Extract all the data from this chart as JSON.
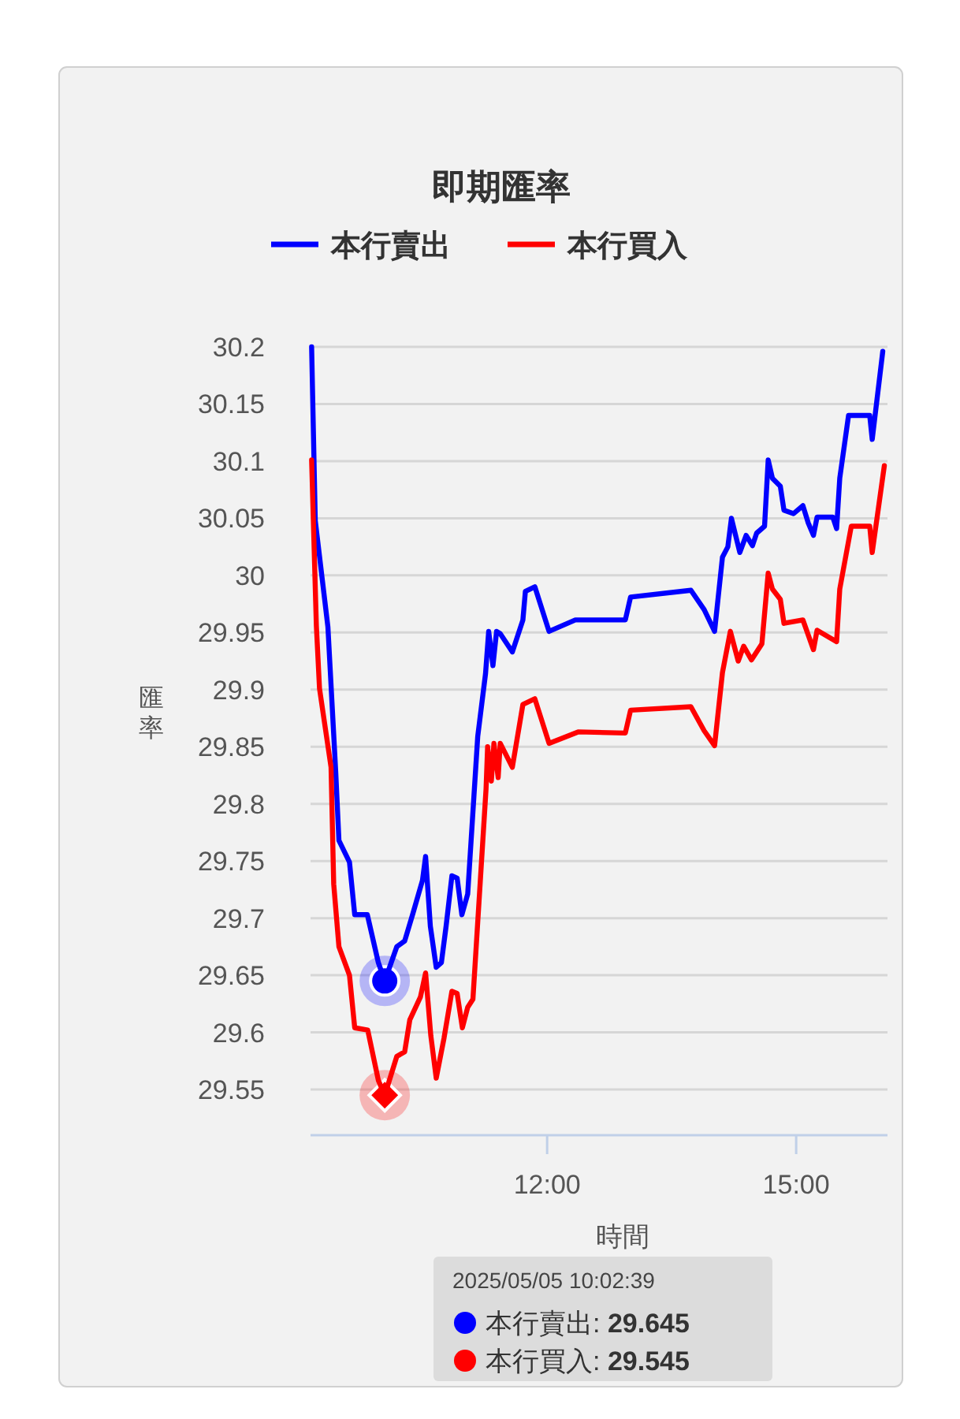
{
  "chart_data": {
    "type": "line",
    "title": "即期匯率",
    "xlabel": "時間",
    "ylabel": "匯率",
    "legend": "top",
    "grid": "y",
    "marker": "none",
    "line_style": "solid",
    "ylim": [
      29.51,
      30.2
    ],
    "yticks": [
      29.55,
      29.6,
      29.65,
      29.7,
      29.75,
      29.8,
      29.85,
      29.9,
      29.95,
      30,
      30.05,
      30.1,
      30.15,
      30.2
    ],
    "xlim": [
      9.15,
      16.1
    ],
    "xticks": [
      {
        "value": 12,
        "label": "12:00"
      },
      {
        "value": 15,
        "label": "15:00"
      }
    ],
    "annotations": [
      "2025/05/05 10:02:39",
      "本行賣出: 29.645",
      "本行買入: 29.545"
    ],
    "series": [
      {
        "name": "本行賣出",
        "color": "#0000ff",
        "x": [
          9.163,
          9.207,
          9.359,
          9.454,
          9.492,
          9.619,
          9.682,
          9.834,
          9.967,
          10.044,
          10.189,
          10.284,
          10.379,
          10.498,
          10.536,
          10.593,
          10.664,
          10.726,
          10.783,
          10.853,
          10.916,
          10.973,
          11.043,
          11.164,
          11.258,
          11.296,
          11.347,
          11.391,
          11.435,
          11.581,
          11.708,
          11.738,
          11.852,
          12.023,
          12.34,
          12.625,
          12.942,
          13.005,
          13.732,
          13.892,
          14.017,
          14.112,
          14.177,
          14.22,
          14.321,
          14.397,
          14.473,
          14.524,
          14.619,
          14.663,
          14.714,
          14.809,
          14.853,
          14.967,
          15.081,
          15.145,
          15.208,
          15.252,
          15.441,
          15.487,
          15.525,
          15.631,
          15.886,
          15.916,
          16.043
        ],
        "values": [
          30.2,
          30.048,
          29.955,
          29.827,
          29.768,
          29.749,
          29.703,
          29.703,
          29.661,
          29.645,
          29.675,
          29.68,
          29.703,
          29.733,
          29.754,
          29.693,
          29.657,
          29.661,
          29.693,
          29.737,
          29.735,
          29.703,
          29.721,
          29.859,
          29.914,
          29.951,
          29.921,
          29.951,
          29.949,
          29.933,
          29.961,
          29.986,
          29.99,
          29.951,
          29.961,
          29.961,
          29.961,
          29.981,
          29.987,
          29.97,
          29.951,
          30.016,
          30.025,
          30.05,
          30.02,
          30.035,
          30.026,
          30.037,
          30.043,
          30.101,
          30.085,
          30.078,
          30.057,
          30.054,
          30.061,
          30.046,
          30.035,
          30.051,
          30.051,
          30.041,
          30.085,
          30.14,
          30.14,
          30.119,
          30.196
        ]
      },
      {
        "name": "本行買入",
        "color": "#ff0000",
        "x": [
          9.163,
          9.22,
          9.258,
          9.397,
          9.429,
          9.492,
          9.619,
          9.682,
          9.839,
          9.967,
          10.044,
          10.189,
          10.284,
          10.346,
          10.474,
          10.536,
          10.599,
          10.664,
          10.758,
          10.853,
          10.916,
          10.979,
          11.043,
          11.106,
          11.264,
          11.283,
          11.328,
          11.359,
          11.41,
          11.435,
          11.581,
          11.708,
          11.852,
          12.023,
          12.373,
          12.942,
          13.005,
          13.732,
          13.892,
          14.017,
          14.112,
          14.207,
          14.302,
          14.367,
          14.462,
          14.587,
          14.663,
          14.714,
          14.809,
          14.853,
          15.081,
          15.208,
          15.252,
          15.487,
          15.525,
          15.664,
          15.886,
          15.916,
          16.062
        ],
        "values": [
          30.101,
          29.956,
          29.901,
          29.832,
          29.73,
          29.675,
          29.65,
          29.604,
          29.602,
          29.558,
          29.545,
          29.579,
          29.583,
          29.611,
          29.631,
          29.652,
          29.597,
          29.56,
          29.595,
          29.636,
          29.634,
          29.604,
          29.622,
          29.629,
          29.813,
          29.85,
          29.82,
          29.853,
          29.823,
          29.853,
          29.832,
          29.887,
          29.892,
          29.853,
          29.863,
          29.862,
          29.882,
          29.885,
          29.864,
          29.851,
          29.915,
          29.951,
          29.925,
          29.938,
          29.926,
          29.94,
          30.002,
          29.988,
          29.979,
          29.958,
          29.961,
          29.935,
          29.952,
          29.942,
          29.988,
          30.043,
          30.043,
          30.02,
          30.096
        ]
      }
    ]
  }
}
